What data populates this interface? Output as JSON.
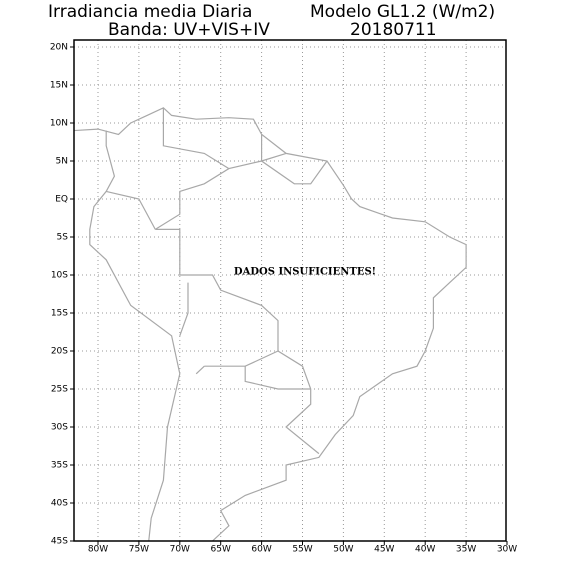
{
  "header": {
    "title_left_1": "Irradiancia media Diaria",
    "title_right_1": "Modelo GL1.2 (W/m2)",
    "title_left_2": "Banda: UV+VIS+IV",
    "title_right_2": "20180711"
  },
  "map": {
    "lat_labels": [
      "20N",
      "15N",
      "10N",
      "5N",
      "EQ",
      "5S",
      "10S",
      "15S",
      "20S",
      "25S",
      "30S",
      "35S",
      "40S",
      "45S"
    ],
    "lon_labels": [
      "80W",
      "75W",
      "70W",
      "65W",
      "60W",
      "55W",
      "50W",
      "45W",
      "40W",
      "35W",
      "30W"
    ],
    "notice": "DADOS INSUFICIENTES!"
  }
}
